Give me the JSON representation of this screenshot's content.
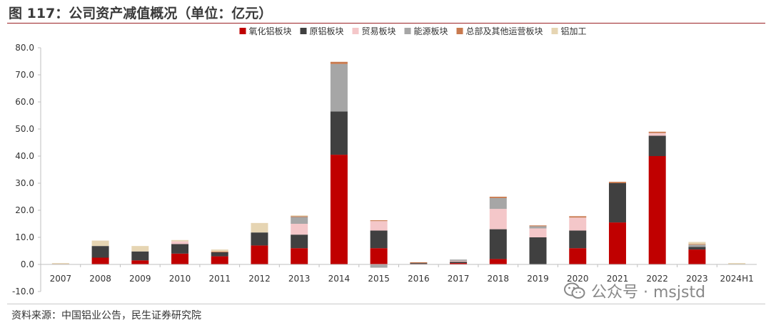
{
  "figure": {
    "title": "图 117：公司资产减值概况（单位：亿元）",
    "source": "资料来源：中国铝业公告，民生证券研究院",
    "watermark_text": "公众号 · msjstd",
    "watermark_icon": "wechat-icon"
  },
  "chart_data": {
    "type": "bar",
    "stacked": true,
    "categories": [
      "2007",
      "2008",
      "2009",
      "2010",
      "2011",
      "2012",
      "2013",
      "2014",
      "2015",
      "2016",
      "2017",
      "2018",
      "2019",
      "2020",
      "2021",
      "2022",
      "2023",
      "2024H1"
    ],
    "ylim": [
      -10,
      80
    ],
    "yticks": [
      "-10.0",
      "0.0",
      "10.0",
      "20.0",
      "30.0",
      "40.0",
      "50.0",
      "60.0",
      "70.0",
      "80.0"
    ],
    "ytick_values": [
      -10,
      0,
      10,
      20,
      30,
      40,
      50,
      60,
      70,
      80
    ],
    "legend_position": "top",
    "grid": false,
    "series": [
      {
        "name": "氧化铝板块",
        "color": "#c00000",
        "values": [
          0,
          2.5,
          1.5,
          4.0,
          3.0,
          7.0,
          6.0,
          40.5,
          6.0,
          0.2,
          0.5,
          2.0,
          0,
          6.0,
          15.5,
          40.0,
          5.5,
          0
        ]
      },
      {
        "name": "原铝板块",
        "color": "#404040",
        "values": [
          0,
          4.3,
          3.3,
          3.5,
          1.5,
          4.8,
          5.0,
          16.0,
          6.5,
          0.3,
          0.5,
          11.0,
          10.0,
          6.5,
          14.5,
          7.5,
          1.0,
          0
        ]
      },
      {
        "name": "贸易板块",
        "color": "#f4c7c9",
        "values": [
          0,
          0,
          0,
          1.0,
          0,
          0,
          4.0,
          0,
          3.5,
          0,
          0.3,
          7.5,
          3.3,
          4.8,
          0,
          1.0,
          0,
          0
        ]
      },
      {
        "name": "能源板块",
        "color": "#a6a6a6",
        "values": [
          0,
          0,
          0,
          0,
          0,
          0,
          2.5,
          17.5,
          -1.2,
          0,
          0.5,
          4.0,
          0.8,
          0,
          0,
          0,
          0.8,
          0
        ]
      },
      {
        "name": "总部及其他运营板块",
        "color": "#c87a4f",
        "values": [
          0.2,
          0,
          0,
          0,
          0.3,
          0,
          0.3,
          0.8,
          0.3,
          0.3,
          0,
          0.5,
          0.3,
          0.5,
          0.5,
          0.5,
          0.2,
          0
        ]
      },
      {
        "name": "铝加工",
        "color": "#e6d5b3",
        "values": [
          0.3,
          2.0,
          2.0,
          0.5,
          0.7,
          3.5,
          0.3,
          0,
          0,
          0,
          0,
          0,
          0,
          0,
          0,
          0,
          0.8,
          0.5
        ]
      }
    ]
  }
}
